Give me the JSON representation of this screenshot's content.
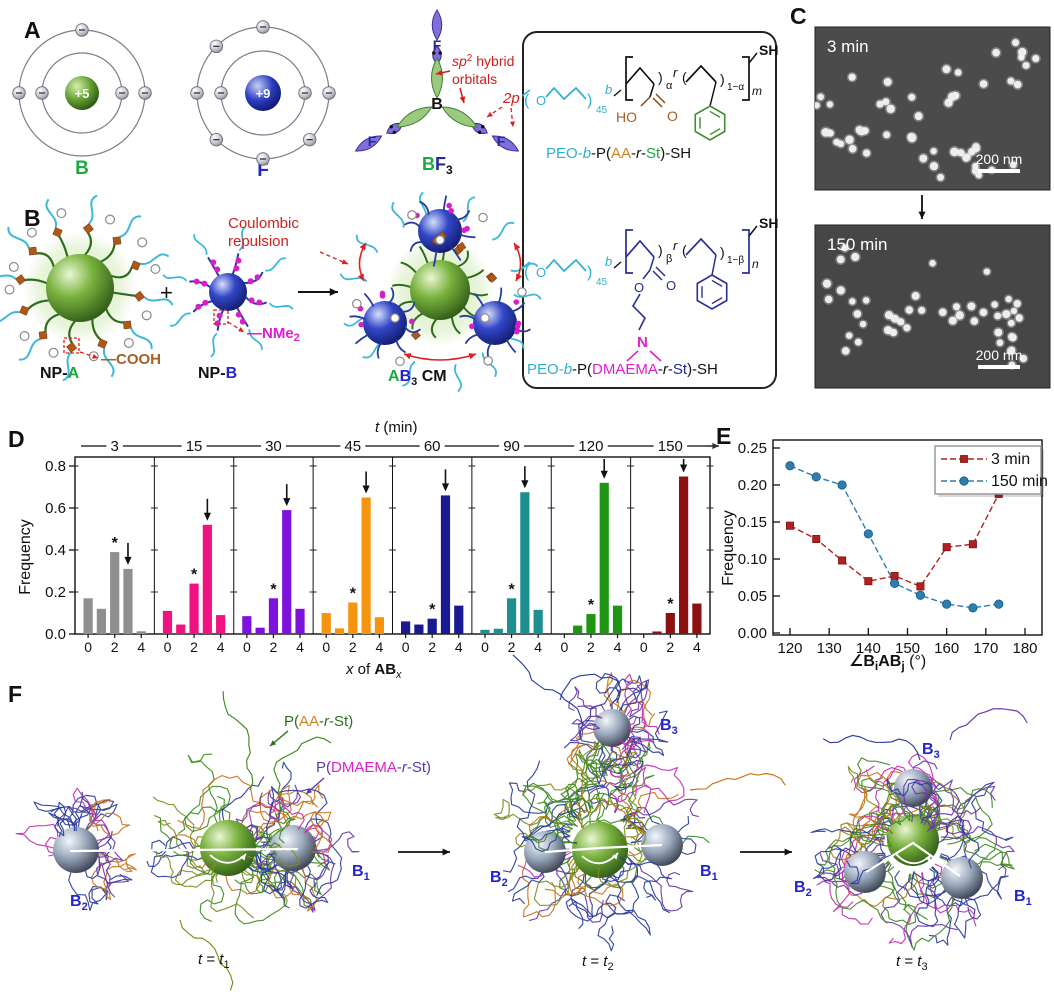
{
  "panel_a": {
    "label": "A",
    "atom_b_charge": "+5",
    "atom_b_symbol": "B",
    "atom_f_charge": "+9",
    "atom_f_symbol": "F",
    "bf3_center": "B",
    "bf3_f1": "F",
    "bf3_f2": "F",
    "bf3_f3": "F",
    "sp2_line1_a": "sp",
    "sp2_line1_b": "2",
    "sp2_line1_c": " hybrid",
    "sp2_line2": "orbitals",
    "p2_label": "2p",
    "name_b": "B",
    "name_f": "F",
    "name_sub": "3"
  },
  "chem": {
    "s1": {
      "o": "O",
      "n45": "45",
      "b": "b",
      "paren_l": "(",
      "paren_r": ")",
      "u1l": "(",
      "u1r": ")",
      "u2l": "(",
      "u2r": ")",
      "alpha": "α",
      "r": "r",
      "oneminus": "1−α",
      "m": "m",
      "ho": "HO",
      "o2": "O",
      "sh": "SH",
      "name": [
        "PEO-",
        "b",
        "-P(",
        "AA",
        "-",
        "r",
        "-",
        "St",
        ")-SH"
      ]
    },
    "s2": {
      "o": "O",
      "n45": "45",
      "b": "b",
      "paren_l": "(",
      "paren_r": ")",
      "u1l": "(",
      "u1r": ")",
      "u2l": "(",
      "u2r": ")",
      "beta": "β",
      "r": "r",
      "oneminus": "1−β",
      "n": "n",
      "oe": "O",
      "o2": "O",
      "namine": "N",
      "sh": "SH",
      "name": [
        "PEO-",
        "b",
        "-P(",
        "DMAEMA",
        "-",
        "r",
        "-",
        "St",
        ")-SH"
      ]
    }
  },
  "panel_b": {
    "label": "B",
    "plus": "+",
    "cooh": "—COOH",
    "nme": "—NMe",
    "nme_sub": "2",
    "npa_prefix": "NP-",
    "npa_letter": "A",
    "npb_prefix": "NP-",
    "npb_letter": "B",
    "ab3_a": "A",
    "ab3_b": "B",
    "ab3_sub": "3",
    "ab3_cm": " CM",
    "coulombic_1": "Coulombic",
    "coulombic_2": "repulsion"
  },
  "panel_c": {
    "label": "C",
    "img1_time": "3 min",
    "img2_time": "150 min",
    "scale1": "200 nm",
    "scale2": "200 nm"
  },
  "panel_d": {
    "label": "D",
    "title_t": "t",
    "title_unit": " (min)",
    "ylabel": "Frequency",
    "xlabel_x": "x",
    "xlabel_of": " of ",
    "xlabel_ab": "AB",
    "xlabel_sub": "x"
  },
  "panel_e": {
    "label": "E",
    "ylabel": "Frequency",
    "xl_angle": "∠B",
    "xl_i": "i",
    "xl_ab": "AB",
    "xl_j": "j",
    "xl_deg": " (°)"
  },
  "panel_f": {
    "label": "F",
    "paast": [
      "P(",
      "AA",
      "-",
      "r",
      "-",
      "St",
      ")"
    ],
    "pdmaema": [
      "P(",
      "DMAEMA",
      "-",
      "r",
      "-",
      "St",
      ")"
    ],
    "bsym": "B",
    "b1s": "1",
    "b2s": "2",
    "b3s": "3",
    "t_a": "t",
    "t_eq": " = ",
    "t_b": "t",
    "t1s": "1",
    "t2s": "2",
    "t3s": "3"
  },
  "chart_data": [
    {
      "id": "panel-D",
      "type": "bar",
      "title": "t (min)",
      "ylabel": "Frequency",
      "xlabel": "x of ABx",
      "ylim": [
        0,
        0.84
      ],
      "yticks": [
        0,
        0.2,
        0.4,
        0.6,
        0.8
      ],
      "categories": [
        0,
        1,
        2,
        3,
        4
      ],
      "xticks_shown": [
        0,
        2,
        4
      ],
      "series": [
        {
          "name": "3",
          "color": "#8f8f8f",
          "values": [
            0.17,
            0.12,
            0.39,
            0.31,
            0.013
          ]
        },
        {
          "name": "15",
          "color": "#ef1280",
          "values": [
            0.11,
            0.045,
            0.24,
            0.52,
            0.09
          ]
        },
        {
          "name": "30",
          "color": "#7e12dd",
          "values": [
            0.085,
            0.03,
            0.17,
            0.59,
            0.12
          ]
        },
        {
          "name": "45",
          "color": "#f5940f",
          "values": [
            0.1,
            0.027,
            0.15,
            0.65,
            0.08
          ]
        },
        {
          "name": "60",
          "color": "#191a8f",
          "values": [
            0.06,
            0.045,
            0.073,
            0.66,
            0.135
          ]
        },
        {
          "name": "90",
          "color": "#1e8f8f",
          "values": [
            0.02,
            0.025,
            0.17,
            0.675,
            0.115
          ]
        },
        {
          "name": "120",
          "color": "#1e9613",
          "values": [
            0,
            0.04,
            0.095,
            0.72,
            0.135
          ]
        },
        {
          "name": "150",
          "color": "#8e1111",
          "values": [
            0,
            0.012,
            0.1,
            0.75,
            0.145
          ]
        }
      ],
      "annotations": {
        "star": "*",
        "star_category": 2,
        "arrow_category": 3
      }
    },
    {
      "id": "panel-E",
      "type": "line",
      "ylabel": "Frequency",
      "xlabel": "∠BiABj (°)",
      "xlim": [
        115,
        183
      ],
      "ylim": [
        0,
        0.262
      ],
      "xticks": [
        120,
        130,
        140,
        150,
        160,
        170,
        180
      ],
      "yticks": [
        0,
        0.05,
        0.1,
        0.15,
        0.2,
        0.25
      ],
      "x": [
        120,
        126.7,
        133.3,
        140,
        146.7,
        153.3,
        160,
        166.7,
        173.3
      ],
      "series": [
        {
          "name": "3 min",
          "marker": "square",
          "color": "#b42020",
          "text_color": "#a82525",
          "values": [
            0.145,
            0.127,
            0.098,
            0.07,
            0.077,
            0.063,
            0.116,
            0.12,
            0.188
          ]
        },
        {
          "name": "150 min",
          "marker": "circle",
          "color": "#2e7fae",
          "text_color": "#1f9aaa",
          "values": [
            0.226,
            0.211,
            0.2,
            0.134,
            0.067,
            0.051,
            0.039,
            0.034,
            0.039
          ]
        }
      ],
      "legend_position": "top-right",
      "grid": false
    }
  ]
}
